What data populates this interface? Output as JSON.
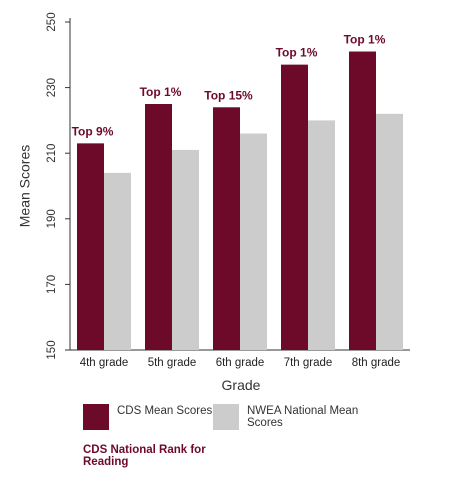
{
  "chart_data": {
    "type": "bar",
    "categories": [
      "4th grade",
      "5th grade",
      "6th grade",
      "7th grade",
      "8th grade"
    ],
    "series": [
      {
        "name": "CDS Mean Scores",
        "values": [
          213,
          225,
          224,
          237,
          241
        ]
      },
      {
        "name": "NWEA National Mean Scores",
        "values": [
          204,
          211,
          216,
          220,
          222
        ]
      }
    ],
    "annotations": [
      "Top 9%",
      "Top 1%",
      "Top 15%",
      "Top 1%",
      "Top 1%"
    ],
    "ylabel": "Mean Scores",
    "xlabel": "Grade",
    "ylim": [
      150,
      250
    ],
    "yticks": [
      150,
      170,
      190,
      210,
      230,
      250
    ],
    "grid": false,
    "colors": {
      "cds": "#6d0a2a",
      "nwea": "#cccccc",
      "rank": "#6d0a2a"
    }
  },
  "legend": {
    "cds_label": "CDS Mean Scores",
    "nwea_label": "NWEA National Mean Scores",
    "rank_note": "CDS National Rank for Reading"
  }
}
